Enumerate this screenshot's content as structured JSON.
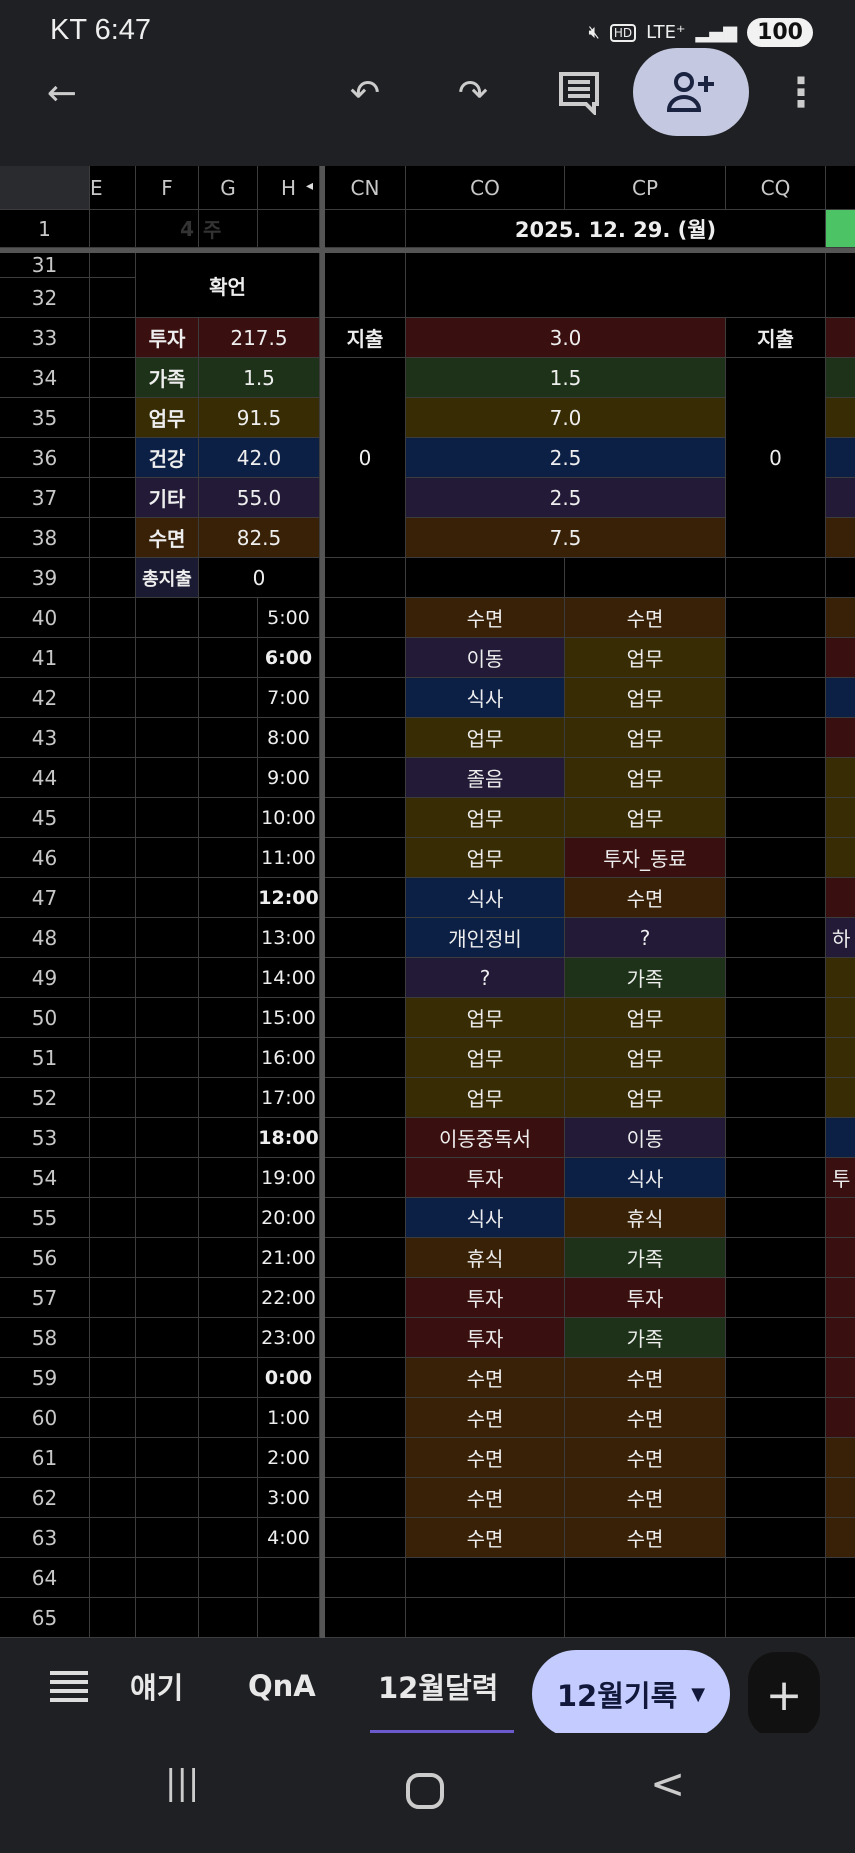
{
  "status": {
    "carrier_time": "KT 6:47",
    "icons": [
      "mute-icon",
      "hd-icon",
      "lte-plus-icon",
      "signal-icon"
    ],
    "network": "LTE⁺",
    "battery": "100"
  },
  "toolbar": {
    "back": "back-arrow-icon",
    "undo": "undo-icon",
    "redo": "redo-icon",
    "comment": "comment-icon",
    "share": "add-person-icon",
    "more": "more-vert-icon"
  },
  "sheet": {
    "col_headers": [
      "E",
      "F",
      "G",
      "H",
      "CN",
      "CO",
      "CP",
      "CQ",
      ""
    ],
    "frozen_indicator": "◂",
    "row1": {
      "week_num": "4",
      "week_label": "주",
      "date": "2025. 12. 29. (월)",
      "accent": "#4cc466"
    },
    "affirmation": "확언",
    "colors": {
      "투자": "#3a0f0f",
      "가족": "#1d3218",
      "업무": "#382c05",
      "건강": "#0c1f45",
      "기타": "#221a36",
      "수면": "#382107",
      "none": "#000000"
    },
    "summary": [
      {
        "label": "투자",
        "total": "217.5",
        "day": "3.0",
        "cat": "투자"
      },
      {
        "label": "가족",
        "total": "1.5",
        "day": "1.5",
        "cat": "가족"
      },
      {
        "label": "업무",
        "total": "91.5",
        "day": "7.0",
        "cat": "업무"
      },
      {
        "label": "건강",
        "total": "42.0",
        "day": "2.5",
        "cat": "건강"
      },
      {
        "label": "기타",
        "total": "55.0",
        "day": "2.5",
        "cat": "기타"
      },
      {
        "label": "수면",
        "total": "82.5",
        "day": "7.5",
        "cat": "수면"
      }
    ],
    "expense_label": "지출",
    "expense_cn": "0",
    "expense_cq": "0",
    "total_expense_label": "총지출",
    "total_expense": "0",
    "schedule": [
      {
        "row": "40",
        "time": "5:00",
        "bold": false,
        "co": "수면",
        "co_cat": "수면",
        "cp": "수면",
        "cp_cat": "수면",
        "cr_cat": "수면",
        "cr": ""
      },
      {
        "row": "41",
        "time": "6:00",
        "bold": true,
        "co": "이동",
        "co_cat": "기타",
        "cp": "업무",
        "cp_cat": "업무",
        "cr_cat": "투자",
        "cr": ""
      },
      {
        "row": "42",
        "time": "7:00",
        "bold": false,
        "co": "식사",
        "co_cat": "건강",
        "cp": "업무",
        "cp_cat": "업무",
        "cr_cat": "건강",
        "cr": ""
      },
      {
        "row": "43",
        "time": "8:00",
        "bold": false,
        "co": "업무",
        "co_cat": "업무",
        "cp": "업무",
        "cp_cat": "업무",
        "cr_cat": "투자",
        "cr": ""
      },
      {
        "row": "44",
        "time": "9:00",
        "bold": false,
        "co": "졸음",
        "co_cat": "기타",
        "cp": "업무",
        "cp_cat": "업무",
        "cr_cat": "업무",
        "cr": ""
      },
      {
        "row": "45",
        "time": "10:00",
        "bold": false,
        "co": "업무",
        "co_cat": "업무",
        "cp": "업무",
        "cp_cat": "업무",
        "cr_cat": "업무",
        "cr": ""
      },
      {
        "row": "46",
        "time": "11:00",
        "bold": false,
        "co": "업무",
        "co_cat": "업무",
        "cp": "투자_동료",
        "cp_cat": "투자",
        "cr_cat": "업무",
        "cr": ""
      },
      {
        "row": "47",
        "time": "12:00",
        "bold": true,
        "co": "식사",
        "co_cat": "건강",
        "cp": "수면",
        "cp_cat": "수면",
        "cr_cat": "투자",
        "cr": ""
      },
      {
        "row": "48",
        "time": "13:00",
        "bold": false,
        "co": "개인정비",
        "co_cat": "건강",
        "cp": "?",
        "cp_cat": "기타",
        "cr_cat": "기타",
        "cr": "하"
      },
      {
        "row": "49",
        "time": "14:00",
        "bold": false,
        "co": "?",
        "co_cat": "기타",
        "cp": "가족",
        "cp_cat": "가족",
        "cr_cat": "업무",
        "cr": ""
      },
      {
        "row": "50",
        "time": "15:00",
        "bold": false,
        "co": "업무",
        "co_cat": "업무",
        "cp": "업무",
        "cp_cat": "업무",
        "cr_cat": "업무",
        "cr": ""
      },
      {
        "row": "51",
        "time": "16:00",
        "bold": false,
        "co": "업무",
        "co_cat": "업무",
        "cp": "업무",
        "cp_cat": "업무",
        "cr_cat": "업무",
        "cr": ""
      },
      {
        "row": "52",
        "time": "17:00",
        "bold": false,
        "co": "업무",
        "co_cat": "업무",
        "cp": "업무",
        "cp_cat": "업무",
        "cr_cat": "업무",
        "cr": ""
      },
      {
        "row": "53",
        "time": "18:00",
        "bold": true,
        "co": "이동중독서",
        "co_cat": "투자",
        "cp": "이동",
        "cp_cat": "기타",
        "cr_cat": "건강",
        "cr": ""
      },
      {
        "row": "54",
        "time": "19:00",
        "bold": false,
        "co": "투자",
        "co_cat": "투자",
        "cp": "식사",
        "cp_cat": "건강",
        "cr_cat": "투자",
        "cr": "투"
      },
      {
        "row": "55",
        "time": "20:00",
        "bold": false,
        "co": "식사",
        "co_cat": "건강",
        "cp": "휴식",
        "cp_cat": "수면",
        "cr_cat": "투자",
        "cr": ""
      },
      {
        "row": "56",
        "time": "21:00",
        "bold": false,
        "co": "휴식",
        "co_cat": "수면",
        "cp": "가족",
        "cp_cat": "가족",
        "cr_cat": "투자",
        "cr": ""
      },
      {
        "row": "57",
        "time": "22:00",
        "bold": false,
        "co": "투자",
        "co_cat": "투자",
        "cp": "투자",
        "cp_cat": "투자",
        "cr_cat": "투자",
        "cr": ""
      },
      {
        "row": "58",
        "time": "23:00",
        "bold": false,
        "co": "투자",
        "co_cat": "투자",
        "cp": "가족",
        "cp_cat": "가족",
        "cr_cat": "투자",
        "cr": ""
      },
      {
        "row": "59",
        "time": "0:00",
        "bold": true,
        "co": "수면",
        "co_cat": "수면",
        "cp": "수면",
        "cp_cat": "수면",
        "cr_cat": "투자",
        "cr": ""
      },
      {
        "row": "60",
        "time": "1:00",
        "bold": false,
        "co": "수면",
        "co_cat": "수면",
        "cp": "수면",
        "cp_cat": "수면",
        "cr_cat": "투자",
        "cr": ""
      },
      {
        "row": "61",
        "time": "2:00",
        "bold": false,
        "co": "수면",
        "co_cat": "수면",
        "cp": "수면",
        "cp_cat": "수면",
        "cr_cat": "수면",
        "cr": ""
      },
      {
        "row": "62",
        "time": "3:00",
        "bold": false,
        "co": "수면",
        "co_cat": "수면",
        "cp": "수면",
        "cp_cat": "수면",
        "cr_cat": "수면",
        "cr": ""
      },
      {
        "row": "63",
        "time": "4:00",
        "bold": false,
        "co": "수면",
        "co_cat": "수면",
        "cp": "수면",
        "cp_cat": "수면",
        "cr_cat": "수면",
        "cr": ""
      }
    ],
    "row_numbers": [
      "1",
      "31",
      "32",
      "33",
      "34",
      "35",
      "36",
      "37",
      "38",
      "39",
      "64",
      "65"
    ]
  },
  "tabs": {
    "menu": "menu-icon",
    "items": [
      "얘기",
      "QnA",
      "12월달력"
    ],
    "active": "12월기록",
    "add": "+",
    "active_underline": "#6a5acd",
    "pill_bg": "#c4ccff"
  },
  "navbar": {
    "recents": "|||",
    "home": "○",
    "back": "<"
  }
}
